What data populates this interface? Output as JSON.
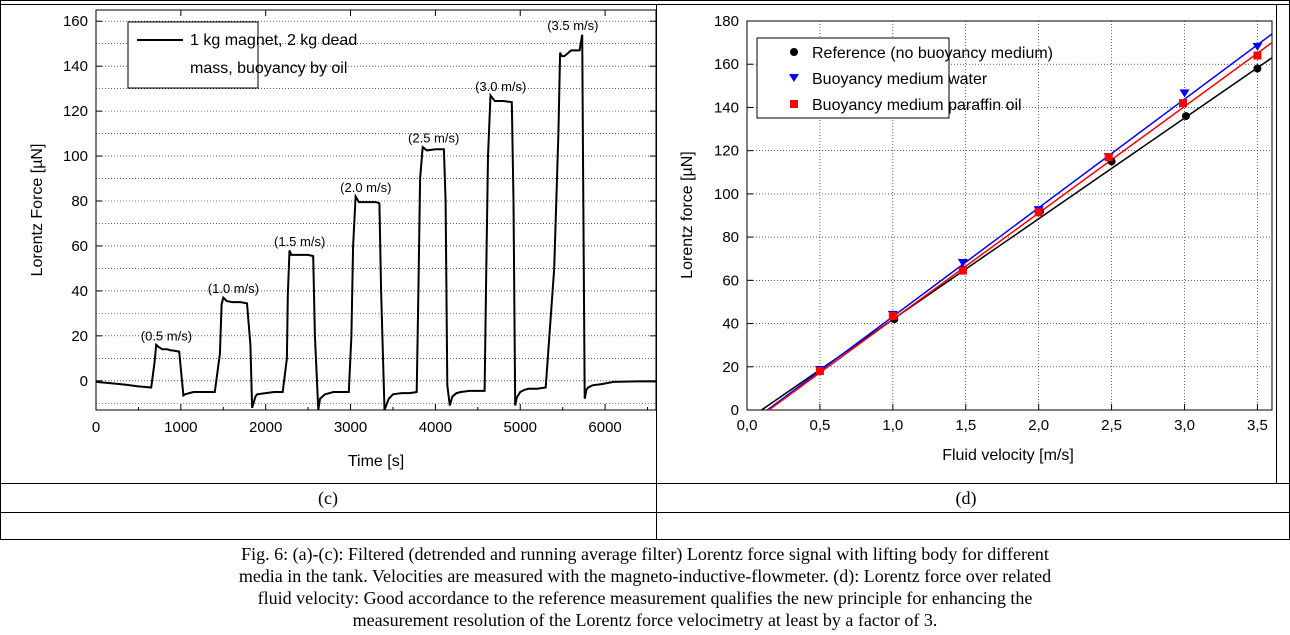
{
  "panel_labels": {
    "left": "(c)",
    "right": "(d)"
  },
  "caption_lines": [
    "Fig. 6: (a)-(c): Filtered (detrended and running average filter) Lorentz force signal with lifting body for different",
    "media in the tank. Velocities are measured with the magneto-inductive-flowmeter. (d): Lorentz force over related",
    "fluid velocity: Good accordance to the reference measurement qualifies the new principle for enhancing the",
    "measurement resolution of the Lorentz force velocimetry at least by a factor of 3."
  ],
  "chart_data": [
    {
      "type": "line",
      "xlabel": "Time [s]",
      "ylabel": "Lorentz Force [µN]",
      "xlim": [
        0,
        6600
      ],
      "ylim": [
        -13,
        165
      ],
      "xticks": [
        0,
        1000,
        2000,
        3000,
        4000,
        5000,
        6000
      ],
      "yticks": [
        0,
        20,
        40,
        60,
        80,
        100,
        120,
        140,
        160
      ],
      "grid": "horizontal dotted",
      "legend": {
        "position": "top-left",
        "entries": [
          "1 kg magnet, 2 kg dead",
          "mass, buoyancy by oil"
        ]
      },
      "series": [
        {
          "name": "1 kg magnet, 2 kg dead mass, buoyancy by oil",
          "x": [
            0,
            100,
            300,
            500,
            650,
            690,
            710,
            740,
            780,
            840,
            880,
            900,
            980,
            1030,
            1050,
            1100,
            1150,
            1200,
            1300,
            1400,
            1460,
            1480,
            1500,
            1540,
            1600,
            1700,
            1780,
            1820,
            1840,
            1880,
            1900,
            2000,
            2100,
            2200,
            2250,
            2260,
            2280,
            2300,
            2340,
            2400,
            2500,
            2560,
            2580,
            2620,
            2640,
            2700,
            2800,
            2900,
            2980,
            3010,
            3030,
            3060,
            3100,
            3200,
            3300,
            3340,
            3360,
            3400,
            3450,
            3500,
            3600,
            3700,
            3780,
            3800,
            3820,
            3850,
            3900,
            4000,
            4100,
            4120,
            4140,
            4170,
            4200,
            4250,
            4300,
            4400,
            4500,
            4580,
            4600,
            4620,
            4650,
            4700,
            4800,
            4900,
            4920,
            4940,
            4960,
            5000,
            5050,
            5100,
            5200,
            5300,
            5400,
            5450,
            5470,
            5490,
            5520,
            5600,
            5700,
            5730,
            5740,
            5760,
            5780,
            5800,
            5850,
            5950,
            6100,
            6300,
            6500,
            6600
          ],
          "y": [
            -0.5,
            -0.8,
            -1.5,
            -2.5,
            -3,
            8,
            16,
            15,
            14,
            14,
            13.5,
            13.5,
            13,
            -6.5,
            -6,
            -5.5,
            -5,
            -5,
            -5,
            -5,
            12,
            34,
            37,
            35.5,
            35,
            35,
            34.5,
            16,
            -12,
            -7,
            -6,
            -5.5,
            -5,
            -5,
            10,
            38,
            58,
            56,
            56,
            56,
            56,
            55.5,
            20,
            -13,
            -8,
            -6,
            -5,
            -5,
            -5,
            20,
            60,
            82,
            79.5,
            79.5,
            79.5,
            79,
            40,
            -13,
            -8,
            -6,
            -5.5,
            -5.5,
            -5,
            40,
            90,
            104,
            102.5,
            103,
            103,
            80,
            -2,
            -11,
            -7,
            -5.5,
            -5,
            -4.5,
            -4.5,
            -4.5,
            50,
            100,
            127,
            124.5,
            124.5,
            124,
            80,
            -11,
            -7.5,
            -5,
            -4,
            -3.5,
            -3.5,
            -3,
            50,
            110,
            146,
            144.5,
            144.5,
            147,
            147,
            154,
            100,
            -8,
            -4,
            -3,
            -2,
            -1.5,
            -0.5,
            -0.3,
            -0.2,
            -0.3
          ]
        }
      ],
      "annotations": [
        {
          "text": "(0.5 m/s)",
          "x": 830,
          "y": 18
        },
        {
          "text": "(1.0 m/s)",
          "x": 1620,
          "y": 39
        },
        {
          "text": "(1.5 m/s)",
          "x": 2400,
          "y": 60
        },
        {
          "text": "(2.0 m/s)",
          "x": 3180,
          "y": 84
        },
        {
          "text": "(2.5 m/s)",
          "x": 3980,
          "y": 106
        },
        {
          "text": "(3.0 m/s)",
          "x": 4770,
          "y": 129
        },
        {
          "text": "(3.5 m/s)",
          "x": 5620,
          "y": 156
        }
      ]
    },
    {
      "type": "scatter",
      "xlabel": "Fluid velocity [m/s]",
      "ylabel": "Lorentz force [µN]",
      "xlim": [
        0,
        3.6
      ],
      "ylim": [
        0,
        180
      ],
      "xticks": [
        "0,0",
        "0,5",
        "1,0",
        "1,5",
        "2,0",
        "2,5",
        "3,0",
        "3,5"
      ],
      "xtick_values": [
        0,
        0.5,
        1.0,
        1.5,
        2.0,
        2.5,
        3.0,
        3.5
      ],
      "yticks": [
        0,
        20,
        40,
        60,
        80,
        100,
        120,
        140,
        160,
        180
      ],
      "grid": "dotted",
      "legend": {
        "position": "top-left"
      },
      "series": [
        {
          "name": "Reference (no buoyancy medium)",
          "marker": "circle",
          "color": "#000000",
          "x": [
            0.5,
            1.01,
            1.48,
            2.01,
            2.5,
            3.01,
            3.5
          ],
          "y": [
            18.5,
            42,
            65,
            92,
            115,
            136,
            158
          ],
          "fit_line": {
            "x": [
              0.1,
              3.6
            ],
            "y": [
              0,
              163
            ]
          }
        },
        {
          "name": "Buoyancy medium water",
          "marker": "triangle-down",
          "color": "#0000ff",
          "x": [
            0.5,
            1.0,
            1.48,
            2.0,
            2.48,
            3.0,
            3.5
          ],
          "y": [
            18.5,
            44,
            68,
            92.5,
            117,
            146.5,
            168
          ],
          "fit_line": {
            "x": [
              0.14,
              3.6
            ],
            "y": [
              0,
              174
            ]
          }
        },
        {
          "name": "Buoyancy medium paraffin oil",
          "marker": "square",
          "color": "#ff0000",
          "x": [
            0.5,
            1.0,
            1.48,
            2.0,
            2.48,
            2.99,
            3.5
          ],
          "y": [
            18,
            43.5,
            64.5,
            91.5,
            117,
            142,
            164
          ],
          "fit_line": {
            "x": [
              0.15,
              3.6
            ],
            "y": [
              0,
              170
            ]
          }
        }
      ]
    }
  ]
}
